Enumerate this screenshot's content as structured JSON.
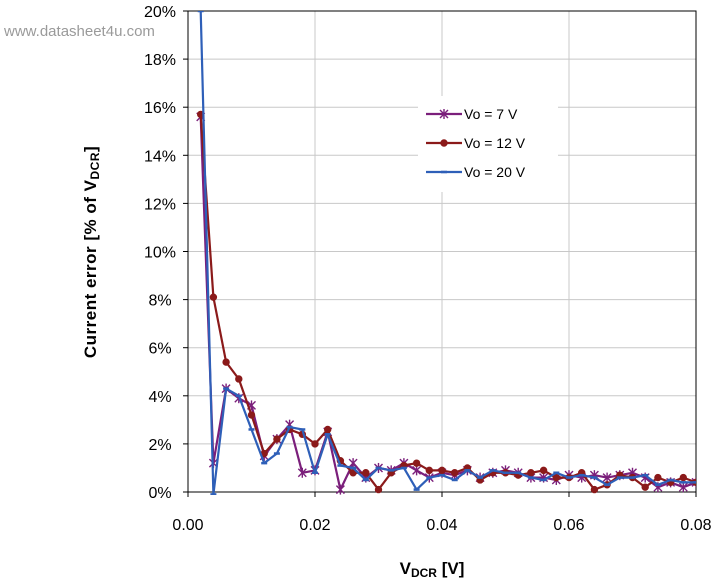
{
  "watermark": "www.datasheet4u.com",
  "chart_data": {
    "type": "line",
    "xlabel": "V",
    "xlabel_sub": "DCR",
    "xlabel_unit": " [V]",
    "ylabel": "Current error [% of V",
    "ylabel_sub": "DCR",
    "ylabel_end": "]",
    "xlim": [
      0,
      0.08
    ],
    "ylim": [
      0,
      20
    ],
    "x_ticks": [
      {
        "value": 0.0,
        "label": "0.00"
      },
      {
        "value": 0.02,
        "label": "0.02"
      },
      {
        "value": 0.04,
        "label": "0.04"
      },
      {
        "value": 0.06,
        "label": "0.06"
      },
      {
        "value": 0.08,
        "label": "0.08"
      }
    ],
    "y_ticks": [
      {
        "value": 0,
        "label": "0%"
      },
      {
        "value": 2,
        "label": "2%"
      },
      {
        "value": 4,
        "label": "4%"
      },
      {
        "value": 6,
        "label": "6%"
      },
      {
        "value": 8,
        "label": "8%"
      },
      {
        "value": 10,
        "label": "10%"
      },
      {
        "value": 12,
        "label": "12%"
      },
      {
        "value": 14,
        "label": "14%"
      },
      {
        "value": 16,
        "label": "16%"
      },
      {
        "value": 18,
        "label": "18%"
      },
      {
        "value": 20,
        "label": "20%"
      }
    ],
    "grid": true,
    "legend_position": "upper-right",
    "series": [
      {
        "name": "Vo = 7 V",
        "color": "#7b1f7b",
        "marker": "star",
        "points": [
          [
            0.002,
            15.6
          ],
          [
            0.004,
            1.2
          ],
          [
            0.006,
            4.3
          ],
          [
            0.008,
            3.9
          ],
          [
            0.01,
            3.6
          ],
          [
            0.012,
            1.5
          ],
          [
            0.014,
            2.2
          ],
          [
            0.016,
            2.8
          ],
          [
            0.018,
            0.8
          ],
          [
            0.02,
            0.9
          ],
          [
            0.022,
            2.5
          ],
          [
            0.024,
            0.1
          ],
          [
            0.026,
            1.2
          ],
          [
            0.028,
            0.6
          ],
          [
            0.03,
            1.0
          ],
          [
            0.032,
            0.9
          ],
          [
            0.034,
            1.2
          ],
          [
            0.036,
            0.9
          ],
          [
            0.038,
            0.6
          ],
          [
            0.04,
            0.8
          ],
          [
            0.042,
            0.7
          ],
          [
            0.044,
            0.9
          ],
          [
            0.046,
            0.6
          ],
          [
            0.048,
            0.8
          ],
          [
            0.05,
            0.9
          ],
          [
            0.052,
            0.8
          ],
          [
            0.054,
            0.6
          ],
          [
            0.056,
            0.6
          ],
          [
            0.058,
            0.5
          ],
          [
            0.06,
            0.7
          ],
          [
            0.062,
            0.6
          ],
          [
            0.064,
            0.7
          ],
          [
            0.066,
            0.6
          ],
          [
            0.068,
            0.7
          ],
          [
            0.07,
            0.8
          ],
          [
            0.072,
            0.6
          ],
          [
            0.074,
            0.2
          ],
          [
            0.076,
            0.4
          ],
          [
            0.078,
            0.2
          ],
          [
            0.08,
            0.4
          ]
        ]
      },
      {
        "name": "Vo = 12 V",
        "color": "#8b1a1a",
        "marker": "circle",
        "points": [
          [
            0.002,
            15.7
          ],
          [
            0.004,
            8.1
          ],
          [
            0.006,
            5.4
          ],
          [
            0.008,
            4.7
          ],
          [
            0.01,
            3.2
          ],
          [
            0.012,
            1.6
          ],
          [
            0.014,
            2.2
          ],
          [
            0.016,
            2.6
          ],
          [
            0.018,
            2.4
          ],
          [
            0.02,
            2.0
          ],
          [
            0.022,
            2.6
          ],
          [
            0.024,
            1.3
          ],
          [
            0.026,
            0.8
          ],
          [
            0.028,
            0.8
          ],
          [
            0.03,
            0.1
          ],
          [
            0.032,
            0.8
          ],
          [
            0.034,
            1.1
          ],
          [
            0.036,
            1.2
          ],
          [
            0.038,
            0.9
          ],
          [
            0.04,
            0.9
          ],
          [
            0.042,
            0.8
          ],
          [
            0.044,
            1.0
          ],
          [
            0.046,
            0.5
          ],
          [
            0.048,
            0.8
          ],
          [
            0.05,
            0.8
          ],
          [
            0.052,
            0.7
          ],
          [
            0.054,
            0.8
          ],
          [
            0.056,
            0.9
          ],
          [
            0.058,
            0.6
          ],
          [
            0.06,
            0.6
          ],
          [
            0.062,
            0.8
          ],
          [
            0.064,
            0.1
          ],
          [
            0.066,
            0.3
          ],
          [
            0.068,
            0.7
          ],
          [
            0.07,
            0.6
          ],
          [
            0.072,
            0.2
          ],
          [
            0.074,
            0.6
          ],
          [
            0.076,
            0.4
          ],
          [
            0.078,
            0.6
          ],
          [
            0.08,
            0.4
          ]
        ]
      },
      {
        "name": "Vo = 20 V",
        "color": "#2e5fb8",
        "marker": "dash",
        "points": [
          [
            0.002,
            20.0
          ],
          [
            0.004,
            -0.1
          ],
          [
            0.006,
            4.3
          ],
          [
            0.008,
            4.0
          ],
          [
            0.01,
            2.6
          ],
          [
            0.012,
            1.2
          ],
          [
            0.014,
            1.6
          ],
          [
            0.016,
            2.7
          ],
          [
            0.018,
            2.6
          ],
          [
            0.02,
            0.8
          ],
          [
            0.022,
            2.4
          ],
          [
            0.024,
            1.1
          ],
          [
            0.026,
            1.0
          ],
          [
            0.028,
            0.5
          ],
          [
            0.03,
            1.0
          ],
          [
            0.032,
            0.9
          ],
          [
            0.034,
            1.0
          ],
          [
            0.036,
            0.1
          ],
          [
            0.038,
            0.6
          ],
          [
            0.04,
            0.7
          ],
          [
            0.042,
            0.5
          ],
          [
            0.044,
            0.9
          ],
          [
            0.046,
            0.6
          ],
          [
            0.048,
            0.9
          ],
          [
            0.05,
            0.8
          ],
          [
            0.052,
            0.8
          ],
          [
            0.054,
            0.6
          ],
          [
            0.056,
            0.5
          ],
          [
            0.058,
            0.8
          ],
          [
            0.06,
            0.6
          ],
          [
            0.062,
            0.7
          ],
          [
            0.064,
            0.6
          ],
          [
            0.066,
            0.3
          ],
          [
            0.068,
            0.6
          ],
          [
            0.07,
            0.6
          ],
          [
            0.072,
            0.7
          ],
          [
            0.074,
            0.3
          ],
          [
            0.076,
            0.5
          ],
          [
            0.078,
            0.4
          ],
          [
            0.08,
            0.4
          ]
        ]
      }
    ]
  }
}
